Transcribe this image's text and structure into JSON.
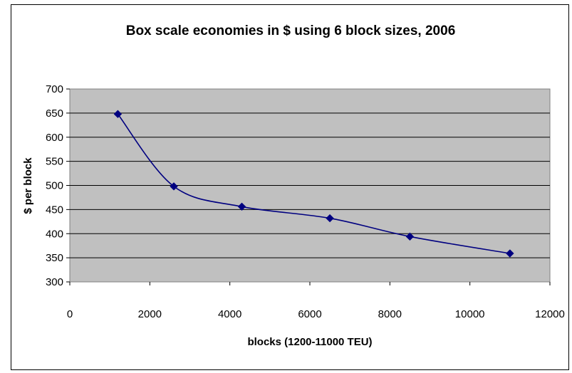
{
  "chart_data": {
    "type": "line",
    "title": "Box scale economies in $ using 6 block sizes, 2006",
    "xlabel": "blocks (1200-11000 TEU)",
    "ylabel": "$ per block",
    "xlim": [
      0,
      12000
    ],
    "ylim": [
      300,
      700
    ],
    "x_ticks": [
      "0",
      "2000",
      "4000",
      "6000",
      "8000",
      "10000",
      "12000"
    ],
    "y_ticks": [
      "300",
      "350",
      "400",
      "450",
      "500",
      "550",
      "600",
      "650",
      "700"
    ],
    "grid": "horizontal",
    "legend": "none",
    "marker": "diamond",
    "colors": {
      "series": "#000080",
      "plot_background": "#c0c0c0",
      "grid": "#000000"
    },
    "points": [
      {
        "x": 1200,
        "y": 648
      },
      {
        "x": 2600,
        "y": 498
      },
      {
        "x": 4300,
        "y": 456
      },
      {
        "x": 6500,
        "y": 432
      },
      {
        "x": 8500,
        "y": 394
      },
      {
        "x": 11000,
        "y": 359
      }
    ]
  }
}
